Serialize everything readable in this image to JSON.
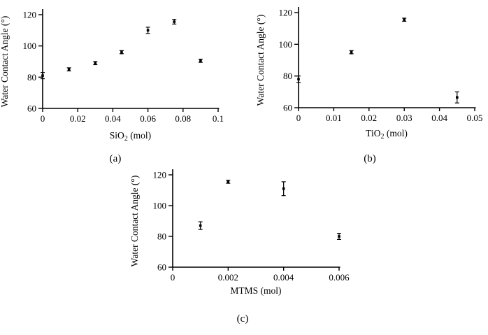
{
  "page": {
    "background": "#ffffff",
    "ink": "#000000"
  },
  "chart_data": [
    {
      "id": "a",
      "type": "scatter",
      "caption": "(a)",
      "xlabel": "SiO2 (mol)",
      "xlabel_parts": {
        "pre": "SiO",
        "sub": "2",
        "post": " (mol)"
      },
      "ylabel": "Water Contact Angle (°)",
      "xlim": [
        0,
        0.1
      ],
      "ylim": [
        60,
        120
      ],
      "xtick_values": [
        0,
        0.02,
        0.04,
        0.06,
        0.08,
        0.1
      ],
      "xticks": [
        "0",
        "0.02",
        "0.04",
        "0.06",
        "0.08",
        "0.1"
      ],
      "ytick_values": [
        60,
        80,
        100,
        120
      ],
      "yticks": [
        "60",
        "80",
        "100",
        "120"
      ],
      "grid": false,
      "legend": "none",
      "marker": "square",
      "color": "#000000",
      "error_bars": true,
      "x": [
        0,
        0.015,
        0.03,
        0.045,
        0.06,
        0.075,
        0.09
      ],
      "y": [
        81,
        85,
        89,
        96,
        110,
        115.5,
        90.5
      ],
      "yerr": [
        2,
        1,
        1,
        1,
        2,
        1.5,
        1
      ]
    },
    {
      "id": "b",
      "type": "scatter",
      "caption": "(b)",
      "xlabel": "TiO2 (mol)",
      "xlabel_parts": {
        "pre": "TiO",
        "sub": "2",
        "post": " (mol)"
      },
      "ylabel": "Water Contact Angle (°)",
      "xlim": [
        0,
        0.05
      ],
      "ylim": [
        60,
        120
      ],
      "xtick_values": [
        0,
        0.01,
        0.02,
        0.03,
        0.04,
        0.05
      ],
      "xticks": [
        "0",
        "0.01",
        "0.02",
        "0.03",
        "0.04",
        "0.05"
      ],
      "ytick_values": [
        60,
        80,
        100,
        120
      ],
      "yticks": [
        "60",
        "80",
        "100",
        "120"
      ],
      "grid": false,
      "legend": "none",
      "marker": "square",
      "color": "#000000",
      "error_bars": true,
      "x": [
        0,
        0.015,
        0.03,
        0.045
      ],
      "y": [
        78,
        95,
        115.5,
        66.5
      ],
      "yerr": [
        2,
        1,
        1,
        3.5
      ]
    },
    {
      "id": "c",
      "type": "scatter",
      "caption": "(c)",
      "xlabel": "MTMS (mol)",
      "xlabel_parts": {
        "pre": "MTMS",
        "sub": "",
        "post": " (mol)"
      },
      "ylabel": "Water Contact Angle (°)",
      "xlim": [
        0,
        0.006
      ],
      "ylim": [
        60,
        120
      ],
      "xtick_values": [
        0,
        0.002,
        0.004,
        0.006
      ],
      "xticks": [
        "0",
        "0.002",
        "0.004",
        "0.006"
      ],
      "ytick_values": [
        60,
        80,
        100,
        120
      ],
      "yticks": [
        "60",
        "80",
        "100",
        "120"
      ],
      "grid": false,
      "legend": "none",
      "marker": "square",
      "color": "#000000",
      "error_bars": true,
      "x": [
        0.001,
        0.002,
        0.004,
        0.006
      ],
      "y": [
        87,
        115.5,
        111,
        80
      ],
      "yerr": [
        2.5,
        1,
        4.5,
        2
      ]
    }
  ]
}
